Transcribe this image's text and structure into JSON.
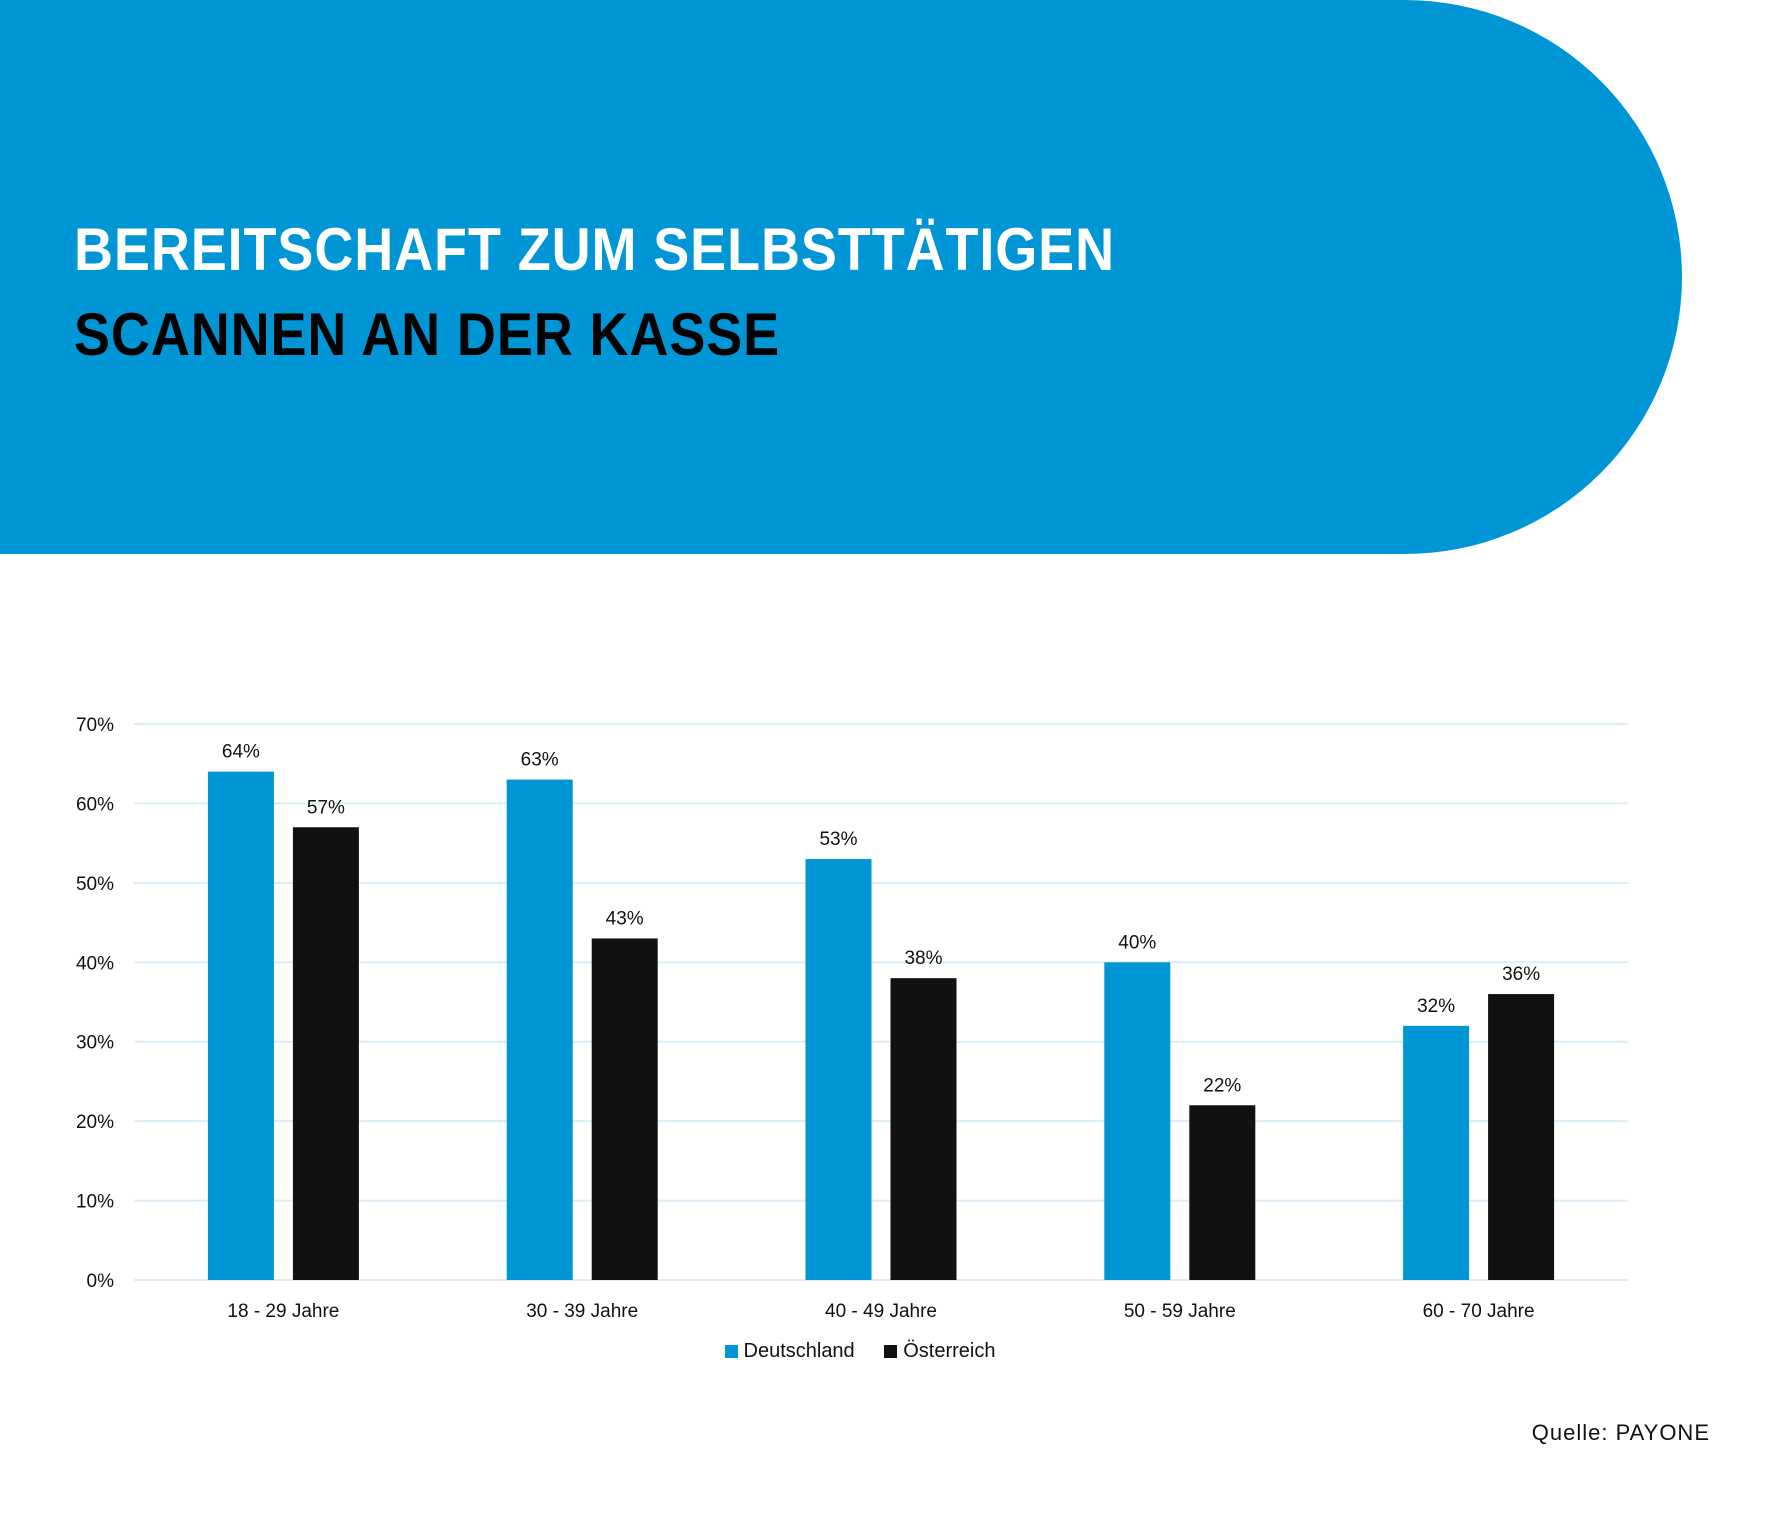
{
  "header": {
    "title_line1": "BEREITSCHAFT ZUM SELBSTTÄTIGEN",
    "title_line2": "SCANNEN AN DER KASSE",
    "color": "#0096d6"
  },
  "chart_data": {
    "type": "bar",
    "title": "BEREITSCHAFT ZUM SELBSTTÄTIGEN SCANNEN AN DER KASSE",
    "categories": [
      "18 - 29 Jahre",
      "30 - 39 Jahre",
      "40 - 49 Jahre",
      "50 - 59 Jahre",
      "60 - 70 Jahre"
    ],
    "series": [
      {
        "name": "Deutschland",
        "color": "#0096d6",
        "values": [
          64,
          63,
          53,
          40,
          32
        ]
      },
      {
        "name": "Österreich",
        "color": "#111111",
        "values": [
          57,
          43,
          38,
          22,
          36
        ]
      }
    ],
    "ylim": [
      0,
      70
    ],
    "yticks": [
      0,
      10,
      20,
      30,
      40,
      50,
      60,
      70
    ],
    "ytick_labels": [
      "0%",
      "10%",
      "20%",
      "30%",
      "40%",
      "50%",
      "60%",
      "70%"
    ],
    "value_suffix": "%",
    "grid": true,
    "legend_position": "bottom",
    "xlabel": "",
    "ylabel": ""
  },
  "legend": {
    "items": [
      "Deutschland",
      "Österreich"
    ]
  },
  "source": "Quelle: PAYONE"
}
